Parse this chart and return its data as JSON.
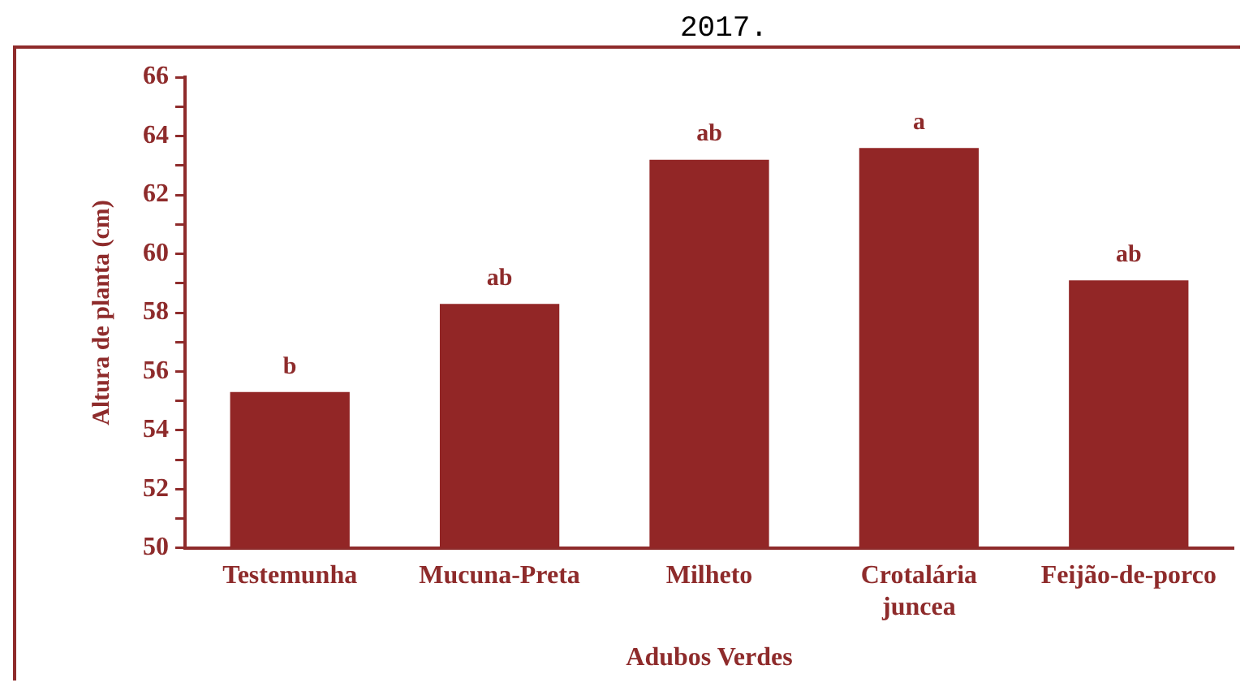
{
  "chart_data": {
    "type": "bar",
    "xlabel": "Adubos Verdes",
    "ylabel": "Altura de planta (cm)",
    "categories": [
      "Testemunha",
      "Mucuna-Preta",
      "Milheto",
      "Crotalária juncea",
      "Feijão-de-porco"
    ],
    "values": [
      55.3,
      58.3,
      63.2,
      63.6,
      59.1
    ],
    "color": "#922626",
    "ylim": [
      50,
      66
    ],
    "yticks": [
      50,
      {
        "value": 51,
        "label": null
      },
      52,
      {
        "value": 53,
        "label": null
      },
      54,
      {
        "value": 55,
        "label": null
      },
      56,
      {
        "value": 57,
        "label": null
      },
      58,
      {
        "value": 59,
        "label": null
      },
      60,
      {
        "value": 61,
        "label": null
      },
      62,
      {
        "value": 63,
        "label": null
      },
      64,
      {
        "value": 65,
        "label": null
      },
      66
    ],
    "grid": false,
    "legend": false,
    "annotations": [
      "2017.",
      {
        "text": "b",
        "x": "Testemunha",
        "y": 55.3
      },
      {
        "text": "ab",
        "x": "Mucuna-Preta",
        "y": 58.3
      },
      {
        "text": "ab",
        "x": "Milheto",
        "y": 63.2
      },
      {
        "text": "a",
        "x": "Crotalária juncea",
        "y": 63.6
      },
      {
        "text": "ab",
        "x": "Feijão-de-porco",
        "y": 59.1
      }
    ]
  }
}
